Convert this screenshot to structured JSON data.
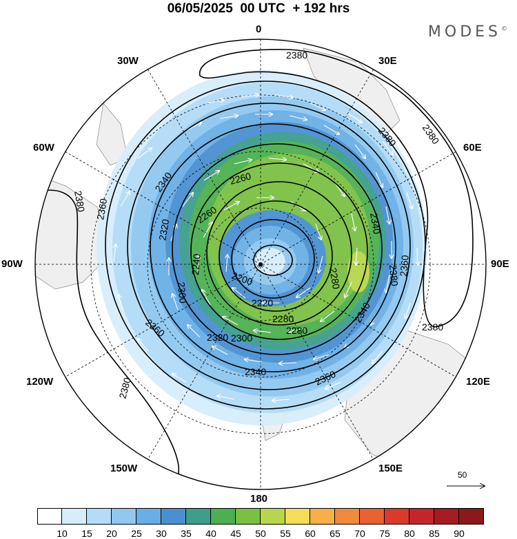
{
  "title": "06/05/2025  00 UTC  + 192 hrs",
  "logo": "MODES",
  "logo_mark": "©",
  "longitude_labels": {
    "top": "0",
    "bottom": "180",
    "30w": "30W",
    "30e": "30E",
    "60w": "60W",
    "60e": "60E",
    "90w": "90W",
    "90e": "90E",
    "120w": "120W",
    "120e": "120E",
    "150w": "150W",
    "150e": "150E"
  },
  "contour_labels": [
    "2380",
    "2380",
    "2380",
    "2380",
    "2380",
    "2380",
    "2380",
    "2360",
    "2360",
    "2360",
    "2360",
    "2340",
    "2340",
    "2340",
    "2340",
    "2320",
    "2320",
    "2300",
    "2300",
    "2280",
    "2280",
    "2280",
    "2260",
    "2260",
    "2240",
    "2220",
    "2200"
  ],
  "reference_vector": {
    "label": "50"
  },
  "colorbar": {
    "colors": [
      "#ffffff",
      "#d6eefc",
      "#b3dcf7",
      "#90c8f0",
      "#6aaee6",
      "#4a90d0",
      "#3d9e8c",
      "#4caf50",
      "#7bc043",
      "#b8d64b",
      "#f5dd5a",
      "#f5b04a",
      "#f08a3c",
      "#e8612e",
      "#d93a2b",
      "#c2262a",
      "#a31c22",
      "#8a1a1a"
    ],
    "ticks": [
      "10",
      "15",
      "20",
      "25",
      "30",
      "35",
      "40",
      "45",
      "50",
      "55",
      "60",
      "65",
      "70",
      "75",
      "80",
      "85",
      "90"
    ]
  }
}
